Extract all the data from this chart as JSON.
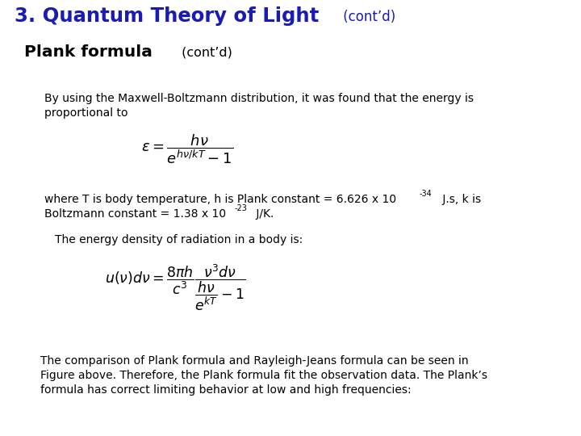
{
  "title_main": "3. Quantum Theory of Light",
  "title_cont": " (cont’d)",
  "title_color": "#1A1AB5",
  "subtitle_main": "Plank formula",
  "subtitle_cont": " (cont’d)",
  "body1_line1": "By using the Maxwell-Boltzmann distribution, it was found that the energy is",
  "body1_line2": "proportional to",
  "body2_line1a": "where T is body temperature, h is Plank constant = 6.626 x 10",
  "body2_sup1": "-34",
  "body2_line1b": " J.s, k is",
  "body2_line2a": "Boltzmann constant = 1.38 x 10",
  "body2_sup2": "-23",
  "body2_line2b": " J/K.",
  "body3": "The energy density of radiation in a body is:",
  "body4_line1": "The comparison of Plank formula and Rayleigh-Jeans formula can be seen in",
  "body4_line2": "Figure above. Therefore, the Plank formula fit the observation data. The Plank’s",
  "body4_line3": "formula has correct limiting behavior at low and high frequencies:",
  "bg_color": "#FFFFFF",
  "text_color": "#000000"
}
